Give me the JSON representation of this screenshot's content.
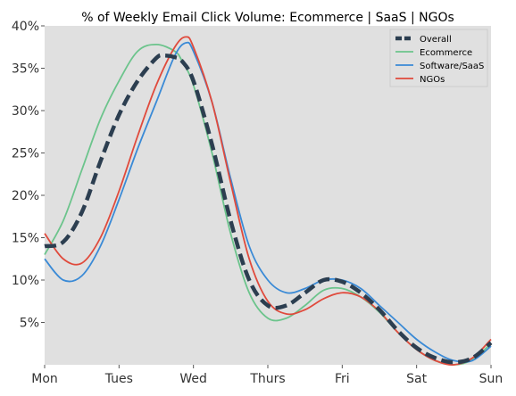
{
  "chart_data": {
    "type": "line",
    "title": "% of Weekly Email Click Volume: Ecommerce | SaaS | NGOs",
    "xlabel": "",
    "ylabel": "",
    "categories": [
      "Mon",
      "Tues",
      "Wed",
      "Thurs",
      "Fri",
      "Sat",
      "Sun"
    ],
    "xlim": [
      0,
      6
    ],
    "ylim": [
      0,
      40
    ],
    "y_ticks": [
      5,
      10,
      15,
      20,
      25,
      30,
      35,
      40
    ],
    "y_tick_labels": [
      "5%",
      "10%",
      "15%",
      "20%",
      "25%",
      "30%",
      "35%",
      "40%"
    ],
    "grid": false,
    "legend_position": "top-right",
    "colors": {
      "background": "#e0e0e0",
      "Overall": "#2c3e50",
      "Ecommerce": "#6cc48c",
      "Software/SaaS": "#3a8ad6",
      "NGOs": "#e04a3c"
    },
    "series": [
      {
        "name": "Overall",
        "style": "dashed",
        "x": [
          0,
          0.25,
          0.5,
          0.75,
          1,
          1.25,
          1.5,
          1.6,
          1.75,
          1.85,
          2,
          2.25,
          2.5,
          2.75,
          3,
          3.25,
          3.5,
          3.75,
          4,
          4.25,
          4.5,
          4.75,
          5,
          5.25,
          5.5,
          5.75,
          6
        ],
        "y": [
          14,
          14.5,
          18,
          24,
          29.5,
          33.5,
          36.2,
          36.5,
          36.3,
          35.8,
          33.5,
          26,
          17,
          10,
          7,
          7,
          8.5,
          10,
          9.8,
          8.5,
          6.5,
          4,
          2,
          0.8,
          0.3,
          0.8,
          2.6
        ]
      },
      {
        "name": "Ecommerce",
        "style": "solid",
        "x": [
          0,
          0.25,
          0.5,
          0.75,
          1,
          1.25,
          1.5,
          1.75,
          1.85,
          2,
          2.25,
          2.5,
          2.75,
          3,
          3.25,
          3.5,
          3.75,
          4,
          4.25,
          4.5,
          4.75,
          5,
          5.25,
          5.5,
          5.75,
          6
        ],
        "y": [
          13,
          17,
          23,
          29,
          33.5,
          37,
          37.8,
          37,
          35.8,
          33,
          25,
          15.5,
          8.5,
          5.5,
          5.5,
          7,
          8.8,
          9,
          8,
          6.2,
          3.8,
          1.8,
          0.5,
          0,
          0.6,
          2.5
        ]
      },
      {
        "name": "Software/SaaS",
        "style": "solid",
        "x": [
          0,
          0.25,
          0.5,
          0.75,
          1,
          1.25,
          1.5,
          1.75,
          1.9,
          2,
          2.25,
          2.5,
          2.75,
          3,
          3.25,
          3.5,
          3.75,
          4,
          4.25,
          4.5,
          4.75,
          5,
          5.25,
          5.5,
          5.75,
          6
        ],
        "y": [
          12.5,
          10,
          10.5,
          14,
          19.5,
          25.5,
          31,
          36.5,
          38,
          37,
          31,
          22,
          14,
          10,
          8.5,
          9,
          10,
          10,
          9,
          7,
          5,
          3,
          1.5,
          0.5,
          0.5,
          2.2
        ]
      },
      {
        "name": "NGOs",
        "style": "solid",
        "x": [
          0,
          0.25,
          0.5,
          0.75,
          1,
          1.25,
          1.5,
          1.75,
          1.9,
          2,
          2.25,
          2.5,
          2.75,
          3,
          3.25,
          3.5,
          3.75,
          4,
          4.25,
          4.5,
          4.75,
          5,
          5.25,
          5.5,
          5.75,
          6
        ],
        "y": [
          15.5,
          12.5,
          12,
          15,
          20.5,
          27,
          33,
          37.5,
          38.7,
          37.5,
          31,
          21.5,
          12.5,
          7.5,
          6,
          6.5,
          7.8,
          8.5,
          8,
          6.3,
          3.8,
          1.8,
          0.5,
          0,
          0.8,
          3
        ]
      }
    ]
  }
}
